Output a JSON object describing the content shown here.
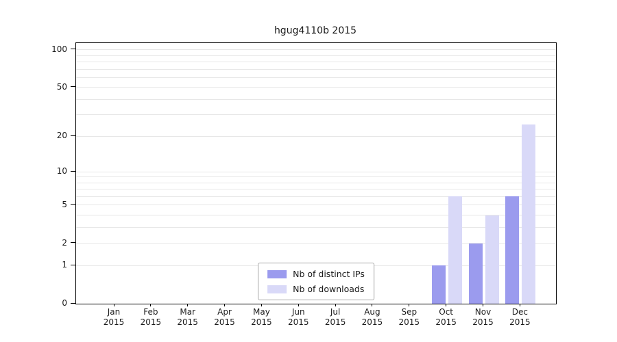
{
  "chart_data": {
    "type": "bar",
    "title": "hgug4110b 2015",
    "xlabel": "",
    "ylabel": "",
    "x_year": "2015",
    "categories": [
      "Jan",
      "Feb",
      "Mar",
      "Apr",
      "May",
      "Jun",
      "Jul",
      "Aug",
      "Sep",
      "Oct",
      "Nov",
      "Dec"
    ],
    "series": [
      {
        "name": "Nb of distinct IPs",
        "color": "#9b9bee",
        "values": [
          0,
          0,
          0,
          0,
          0,
          0,
          0,
          0,
          0,
          1,
          2,
          6
        ]
      },
      {
        "name": "Nb of downloads",
        "color": "#d9d9f8",
        "values": [
          0,
          0,
          0,
          0,
          0,
          0,
          0,
          0,
          0,
          6,
          4,
          25
        ]
      }
    ],
    "y_axis": {
      "ticks": [
        0,
        1,
        2,
        5,
        10,
        20,
        50,
        100
      ],
      "minor_gridlines": [
        1,
        2,
        3,
        4,
        5,
        6,
        7,
        8,
        9,
        10,
        20,
        30,
        40,
        50,
        60,
        70,
        80,
        90,
        100
      ],
      "scale": "log1p",
      "axis_max": 113
    },
    "grid": true,
    "legend": {
      "position": "bottom-center",
      "entries": [
        "Nb of distinct IPs",
        "Nb of downloads"
      ]
    }
  },
  "colors": {
    "background": "#ffffff",
    "gridline": "#e7e7e7",
    "axis": "#000000",
    "legend_border": "#a6a6a6",
    "text": "#1a1a1a"
  }
}
